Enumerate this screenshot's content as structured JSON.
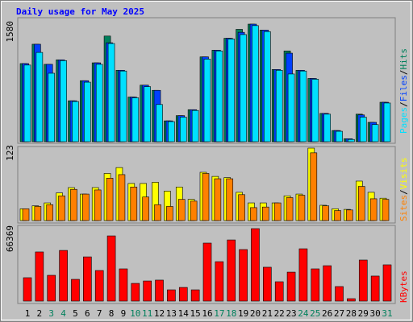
{
  "chart_data": [
    {
      "type": "bar",
      "title": "Daily usage for May 2025",
      "ylim": [
        0,
        1580
      ],
      "yticks": [
        1580
      ],
      "legend_separator": "/",
      "series": [
        {
          "name": "Pages",
          "color": "#00E0FF",
          "values": [
            1030,
            1200,
            920,
            1090,
            540,
            800,
            1040,
            1320,
            950,
            590,
            740,
            500,
            270,
            330,
            420,
            1110,
            1220,
            1380,
            1440,
            1560,
            1480,
            960,
            910,
            950,
            840,
            370,
            140,
            30,
            330,
            230,
            520
          ]
        },
        {
          "name": "Files",
          "color": "#0040FF",
          "values": [
            1050,
            1310,
            1040,
            1100,
            550,
            820,
            1060,
            1330,
            960,
            600,
            760,
            690,
            280,
            350,
            430,
            1140,
            1230,
            1390,
            1470,
            1580,
            1500,
            970,
            1190,
            960,
            850,
            380,
            150,
            40,
            360,
            260,
            530
          ]
        },
        {
          "name": "Hits",
          "color": "#00805C",
          "values": [
            1050,
            1310,
            1040,
            1100,
            550,
            820,
            1060,
            1420,
            960,
            600,
            760,
            690,
            280,
            350,
            430,
            1140,
            1230,
            1390,
            1510,
            1580,
            1500,
            970,
            1220,
            960,
            850,
            380,
            150,
            40,
            370,
            260,
            530
          ]
        }
      ]
    },
    {
      "type": "bar",
      "ylim": [
        0,
        123
      ],
      "yticks": [
        123
      ],
      "legend_separator": "/",
      "series": [
        {
          "name": "Sites",
          "color": "#FF8000",
          "values": [
            20,
            24,
            27,
            42,
            53,
            45,
            52,
            72,
            78,
            57,
            40,
            27,
            24,
            36,
            33,
            80,
            71,
            71,
            44,
            22,
            23,
            30,
            39,
            43,
            115,
            25,
            17,
            18,
            58,
            37,
            36
          ]
        },
        {
          "name": "Visits",
          "color": "#FFFF00",
          "values": [
            20,
            25,
            30,
            47,
            56,
            45,
            56,
            80,
            90,
            63,
            63,
            65,
            50,
            57,
            36,
            82,
            75,
            73,
            48,
            30,
            30,
            30,
            42,
            45,
            123,
            26,
            20,
            19,
            67,
            48,
            38
          ]
        }
      ]
    },
    {
      "type": "bar",
      "ylim": [
        0,
        66369
      ],
      "yticks": [
        66369
      ],
      "series": [
        {
          "name": "KBytes",
          "color": "#FF0000",
          "values": [
            21400,
            45000,
            23600,
            46400,
            19900,
            40500,
            28000,
            59700,
            29500,
            16200,
            18400,
            19200,
            10300,
            12500,
            10300,
            53100,
            36100,
            56000,
            47200,
            66369,
            31000,
            17700,
            26500,
            47900,
            29500,
            32400,
            13300,
            2200,
            37600,
            22900,
            33200
          ]
        }
      ],
      "categories": [
        "1",
        "2",
        "3",
        "4",
        "5",
        "6",
        "7",
        "8",
        "9",
        "10",
        "11",
        "12",
        "13",
        "14",
        "15",
        "16",
        "17",
        "18",
        "19",
        "20",
        "21",
        "22",
        "23",
        "24",
        "25",
        "26",
        "27",
        "28",
        "29",
        "30",
        "31"
      ],
      "category_colors": [
        "#000000",
        "#000000",
        "#00805C",
        "#00805C",
        "#000000",
        "#000000",
        "#000000",
        "#000000",
        "#000000",
        "#00805C",
        "#00805C",
        "#000000",
        "#000000",
        "#000000",
        "#000000",
        "#000000",
        "#00805C",
        "#00805C",
        "#000000",
        "#000000",
        "#000000",
        "#000000",
        "#000000",
        "#00805C",
        "#00805C",
        "#000000",
        "#000000",
        "#000000",
        "#000000",
        "#000000",
        "#00805C"
      ]
    }
  ]
}
